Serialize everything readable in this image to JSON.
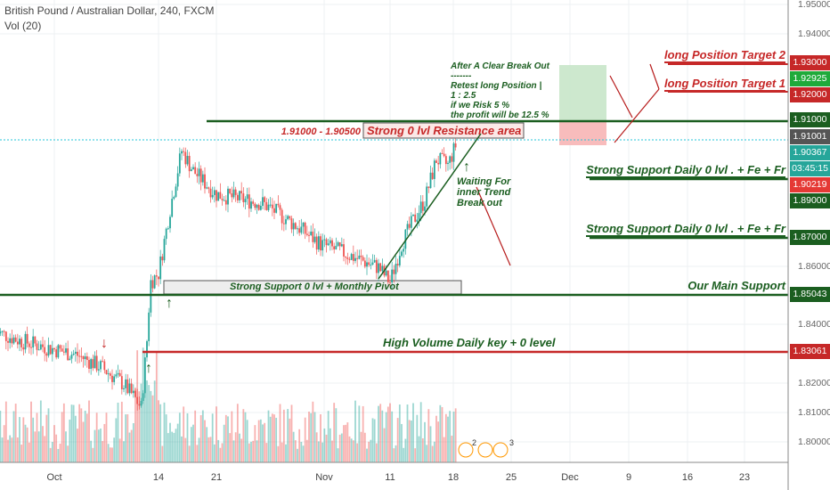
{
  "header": {
    "title": "British Pound / Australian Dollar, 240, FXCM",
    "indicator": "Vol (20)"
  },
  "colors": {
    "up": "#26a69a",
    "down": "#ef5350",
    "support": "#1b5e20",
    "resistance": "#c62828"
  },
  "price_axis": {
    "ticks": [
      "1.95000",
      "1.94000",
      "1.86000",
      "1.84000",
      "1.82000",
      "1.81000",
      "1.80000"
    ],
    "labels": [
      {
        "value": "1.93000",
        "color": "#c62828"
      },
      {
        "value": "1.92925",
        "color": "#1faa3a"
      },
      {
        "value": "1.92000",
        "color": "#c62828"
      },
      {
        "value": "1.91000",
        "color": "#1b5e20"
      },
      {
        "value": "1.91001",
        "color": "#555555"
      },
      {
        "value": "1.90367",
        "color": "#26a69a"
      },
      {
        "value": "03:45:15",
        "color": "#26a69a"
      },
      {
        "value": "1.90219",
        "color": "#e53935"
      },
      {
        "value": "1.89000",
        "color": "#1b5e20"
      },
      {
        "value": "1.87000",
        "color": "#1b5e20"
      },
      {
        "value": "1.85043",
        "color": "#1b5e20"
      },
      {
        "value": "1.83061",
        "color": "#c62828"
      }
    ]
  },
  "time_axis": [
    "Oct",
    "14",
    "21",
    "Nov",
    "11",
    "18",
    "25",
    "Dec",
    "9",
    "16",
    "23"
  ],
  "annotations": {
    "target2": "long Position Target 2",
    "target1": "long Position Target 1",
    "range": "1.91000 - 1.90500",
    "resistance": "Strong 0 lvl Resistance area",
    "support_daily_1": "Strong Support Daily 0 lvl . + Fe + Fr",
    "support_daily_2": "Strong Support Daily 0 lvl . + Fe + Fr",
    "main_support": "Our Main Support",
    "monthly_pivot": "Strong Support  0 lvl + Monthly Pivot",
    "high_volume": "High Volume Daily key + 0 level",
    "waiting": [
      "Waiting For",
      "inner Trend",
      "Break out"
    ],
    "breakout_note": [
      "After A Clear Break Out",
      "-------",
      "Retest long Position |",
      "1 : 2.5",
      "if we Risk 5 %",
      "the profit will be 12.5 %"
    ]
  },
  "events": {
    "left_count": "2",
    "right_count": "3"
  },
  "chart_data": {
    "type": "candlestick",
    "price_range": [
      1.795,
      1.95
    ],
    "waypoints": [
      [
        -5,
        1.838
      ],
      [
        -3,
        1.835
      ],
      [
        0,
        1.832
      ],
      [
        2,
        1.83
      ],
      [
        4,
        1.826
      ],
      [
        6,
        1.82
      ],
      [
        7,
        1.815
      ],
      [
        7.5,
        1.812
      ],
      [
        8,
        1.835
      ],
      [
        8.3,
        1.855
      ],
      [
        9,
        1.858
      ],
      [
        10,
        1.88
      ],
      [
        11,
        1.9
      ],
      [
        12,
        1.893
      ],
      [
        14,
        1.885
      ],
      [
        18,
        1.882
      ],
      [
        21,
        1.874
      ],
      [
        23,
        1.868
      ],
      [
        25,
        1.865
      ],
      [
        28,
        1.86
      ],
      [
        29,
        1.855
      ],
      [
        30,
        1.868
      ],
      [
        31,
        1.876
      ],
      [
        32,
        1.883
      ],
      [
        33,
        1.897
      ],
      [
        34,
        1.895
      ],
      [
        34.8,
        1.903
      ]
    ]
  }
}
